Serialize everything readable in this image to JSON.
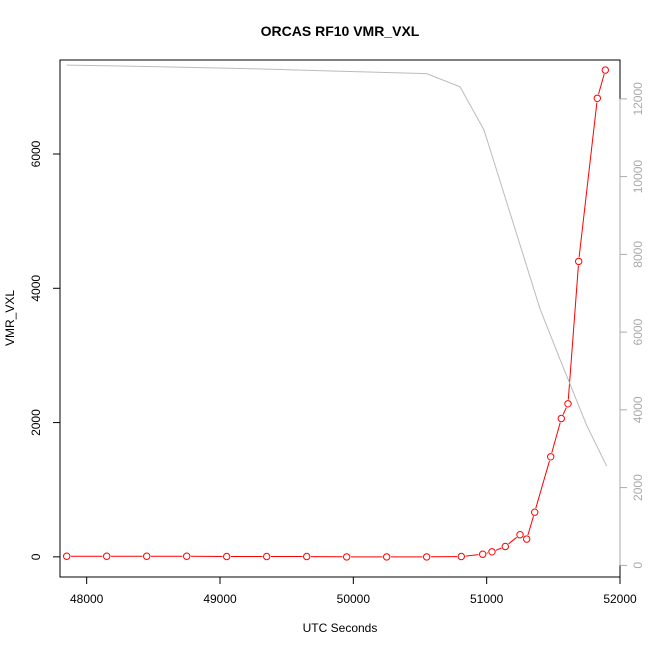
{
  "chart_data": {
    "type": "line",
    "title": "ORCAS RF10 VMR_VXL",
    "xlabel": "UTC Seconds",
    "ylabel": "VMR_VXL",
    "xlim": [
      47800,
      52000
    ],
    "ylim": [
      -300,
      7400
    ],
    "y2lim": [
      -300,
      13000
    ],
    "x_ticks": [
      48000,
      49000,
      50000,
      51000,
      52000
    ],
    "y_ticks": [
      0,
      2000,
      4000,
      6000
    ],
    "y2_ticks": [
      0,
      2000,
      4000,
      6000,
      8000,
      10000,
      12000
    ],
    "grid": false,
    "series": [
      {
        "color": "#ff0000",
        "axis": "left",
        "markers": true,
        "x": [
          47850,
          48150,
          48450,
          48750,
          49050,
          49350,
          49650,
          49950,
          50250,
          50550,
          50810,
          50970,
          51040,
          51140,
          51250,
          51300,
          51360,
          51480,
          51560,
          51610,
          51690,
          51830,
          51890
        ],
        "y": [
          10,
          10,
          10,
          10,
          5,
          5,
          5,
          0,
          0,
          0,
          5,
          40,
          75,
          155,
          330,
          265,
          665,
          1490,
          2060,
          2280,
          4400,
          6830,
          7250
        ]
      },
      {
        "color": "#bbbbbb",
        "axis": "right",
        "markers": false,
        "x": [
          47850,
          48500,
          49200,
          49800,
          50550,
          50800,
          50980,
          51200,
          51400,
          51550,
          51750,
          51900
        ],
        "y": [
          12870,
          12830,
          12780,
          12720,
          12650,
          12310,
          11200,
          8800,
          6600,
          5300,
          3600,
          2550
        ]
      }
    ]
  }
}
